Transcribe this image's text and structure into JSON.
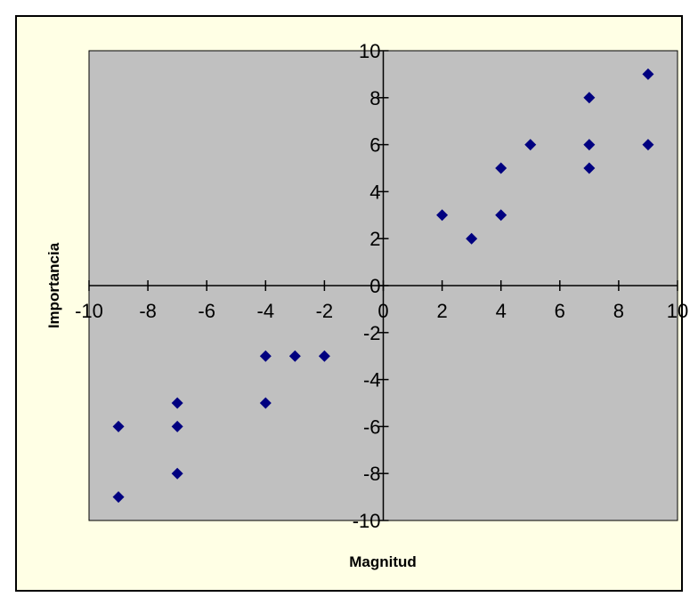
{
  "colors": {
    "chart_background": "#FFFFE5",
    "plot_background": "#C0C0C0",
    "marker": "#000080",
    "axis": "#000000"
  },
  "chart_data": {
    "type": "scatter",
    "title": "",
    "xlabel": "Magnitud",
    "ylabel": "Importancia",
    "xlim": [
      -10,
      10
    ],
    "ylim": [
      -10,
      10
    ],
    "xticks": [
      -10,
      -8,
      -6,
      -4,
      -2,
      0,
      2,
      4,
      6,
      8,
      10
    ],
    "yticks": [
      -10,
      -8,
      -6,
      -4,
      -2,
      0,
      2,
      4,
      6,
      8,
      10
    ],
    "grid": false,
    "legend": "none",
    "marker": "diamond",
    "points": [
      {
        "x": 9,
        "y": 9
      },
      {
        "x": 7,
        "y": 8
      },
      {
        "x": 5,
        "y": 6
      },
      {
        "x": 7,
        "y": 6
      },
      {
        "x": 9,
        "y": 6
      },
      {
        "x": 4,
        "y": 5
      },
      {
        "x": 7,
        "y": 5
      },
      {
        "x": 2,
        "y": 3
      },
      {
        "x": 4,
        "y": 3
      },
      {
        "x": 3,
        "y": 2
      },
      {
        "x": -4,
        "y": -3
      },
      {
        "x": -3,
        "y": -3
      },
      {
        "x": -2,
        "y": -3
      },
      {
        "x": -7,
        "y": -5
      },
      {
        "x": -4,
        "y": -5
      },
      {
        "x": -9,
        "y": -6
      },
      {
        "x": -7,
        "y": -6
      },
      {
        "x": -7,
        "y": -8
      },
      {
        "x": -9,
        "y": -9
      }
    ]
  }
}
